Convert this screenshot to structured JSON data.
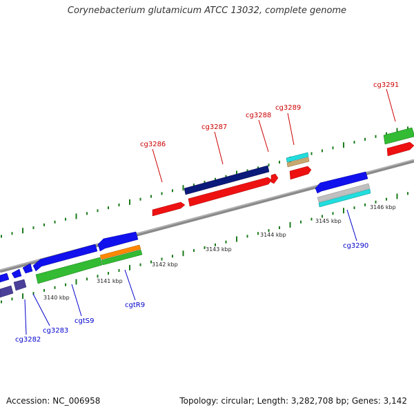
{
  "title": "Corynebacterium glutamicum ATCC 13032, complete genome",
  "footer": {
    "accession": "Accession: NC_006958",
    "summary": "Topology: circular; Length: 3,282,708 bp; Genes: 3,142"
  },
  "colors": {
    "backbone": "#8a8a8a",
    "tick_dot": "#1a7a1a",
    "forward_label": "#cc0000",
    "reverse_label": "#0000cc",
    "scale_text": "#222222"
  },
  "scale_labels": [
    {
      "label": "3140 kbp",
      "kbp": 3140
    },
    {
      "label": "3141 kbp",
      "kbp": 3141
    },
    {
      "label": "3142 kbp",
      "kbp": 3142
    },
    {
      "label": "3143 kbp",
      "kbp": 3143
    },
    {
      "label": "3144 kbp",
      "kbp": 3144
    },
    {
      "label": "3145 kbp",
      "kbp": 3145
    },
    {
      "label": "3146 kbp",
      "kbp": 3146
    }
  ],
  "forward_genes": [
    {
      "id": "cg3286",
      "label": "cg3286"
    },
    {
      "id": "cg3287",
      "label": "cg3287"
    },
    {
      "id": "cg3288",
      "label": "cg3288"
    },
    {
      "id": "cg3289",
      "label": "cg3289"
    },
    {
      "id": "cg3291",
      "label": "cg3291"
    }
  ],
  "reverse_genes": [
    {
      "id": "cg3282",
      "label": "cg3282"
    },
    {
      "id": "cg3283",
      "label": "cg3283"
    },
    {
      "id": "cgtS9",
      "label": "cgtS9"
    },
    {
      "id": "cgtR9",
      "label": "cgtR9"
    },
    {
      "id": "cg3290",
      "label": "cg3290"
    }
  ]
}
